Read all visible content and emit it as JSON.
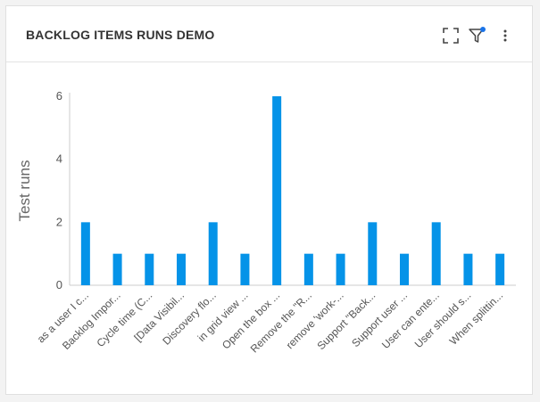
{
  "card": {
    "title": "BACKLOG ITEMS RUNS DEMO"
  },
  "toolbar": {
    "icons": [
      "expand-icon",
      "filter-icon",
      "more-vertical-icon"
    ],
    "filter_active_color": "#1a73e8"
  },
  "chart_data": {
    "type": "bar",
    "ylabel": "Test runs",
    "xlabel": "",
    "ylim": [
      0,
      6
    ],
    "yticks": [
      0,
      2,
      4,
      6
    ],
    "bar_color": "#0593e8",
    "categories": [
      "as a user I c...",
      "Backlog Impor...",
      "Cycle time (C...",
      "[Data Visibil...",
      "Discovery flo...",
      "in grid view ...",
      "Open the box ...",
      "Remove the \"R...",
      "remove 'work-...",
      "Support \"Back...",
      "Support user ...",
      "User can ente...",
      "User should s...",
      "When splittin..."
    ],
    "values": [
      2,
      1,
      1,
      1,
      2,
      1,
      6,
      1,
      1,
      2,
      1,
      2,
      1,
      1
    ]
  }
}
